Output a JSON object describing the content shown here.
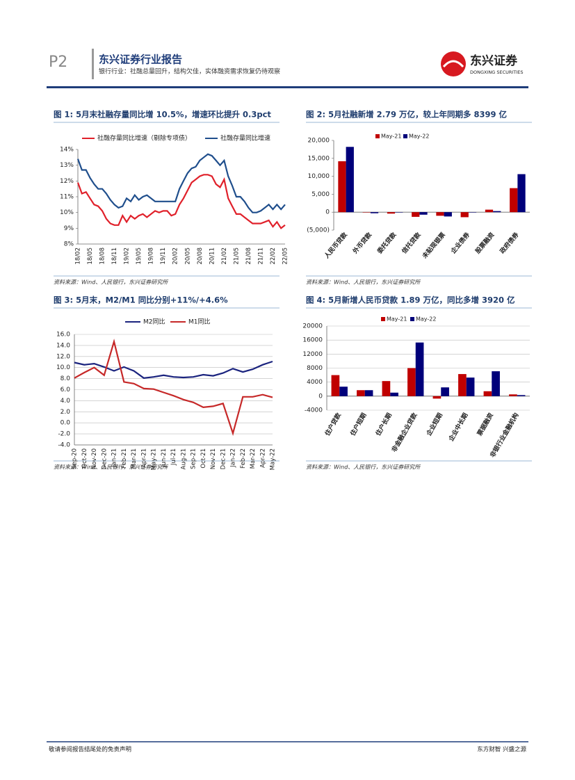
{
  "header": {
    "page": "P2",
    "title": "东兴证券行业报告",
    "subtitle": "银行行业：社融总量回升，结构欠佳，实体融资需求恢复仍待观察",
    "logo": "东兴证券",
    "logo_en": "DONGXING SECURITIES"
  },
  "footer": {
    "left": "敬请参阅报告结尾处的免责声明",
    "right": "东方财智 兴盛之源"
  },
  "chart_data": [
    {
      "type": "line",
      "title": "图 1: 5月末社融存量同比增 10.5%，增速环比提升 0.3pct",
      "source": "资料来源：Wind、人民银行，东兴证券研究所",
      "grid": false,
      "categories": [
        "18/02",
        null,
        null,
        "18/05",
        null,
        null,
        "18/08",
        null,
        null,
        "18/11",
        null,
        null,
        "19/02",
        null,
        null,
        "19/05",
        null,
        null,
        "19/08",
        null,
        null,
        "19/11",
        null,
        null,
        "20/02",
        null,
        null,
        "20/05",
        null,
        null,
        "20/08",
        null,
        null,
        "20/11",
        null,
        null,
        "21/02",
        null,
        null,
        "21/05",
        null,
        null,
        "21/08",
        null,
        null,
        "21/11",
        null,
        null,
        "22/02",
        null,
        null,
        "22/05"
      ],
      "ylim": [
        8,
        14
      ],
      "yticks": [
        {
          "value": 8,
          "label": "8%"
        },
        {
          "value": 9,
          "label": "9%"
        },
        {
          "value": 10,
          "label": "10%"
        },
        {
          "value": 11,
          "label": "11%"
        },
        {
          "value": 12,
          "label": "12%"
        },
        {
          "value": 13,
          "label": "13%"
        },
        {
          "value": 14,
          "label": "14%"
        }
      ],
      "series": [
        {
          "name": "社融存量同比增速（剔除专项债）",
          "color": "#e0202a",
          "values": [
            11.9,
            11.2,
            11.3,
            10.9,
            10.5,
            10.4,
            10.1,
            9.6,
            9.3,
            9.2,
            9.2,
            9.8,
            9.4,
            9.8,
            9.6,
            9.8,
            9.9,
            9.7,
            9.9,
            10.1,
            10.0,
            10.1,
            10.1,
            9.8,
            9.9,
            10.5,
            10.9,
            11.4,
            11.9,
            12.1,
            12.3,
            12.4,
            12.4,
            12.3,
            11.8,
            11.6,
            12.1,
            10.9,
            10.4,
            9.9,
            9.9,
            9.7,
            9.5,
            9.3,
            9.3,
            9.3,
            9.4,
            9.5,
            9.1,
            9.4,
            9.0,
            9.2
          ]
        },
        {
          "name": "社融存量同比增速",
          "color": "#1f4e8c",
          "values": [
            13.4,
            12.7,
            12.7,
            12.2,
            11.8,
            11.5,
            11.5,
            11.2,
            10.8,
            10.5,
            10.3,
            10.4,
            10.9,
            10.7,
            11.1,
            10.8,
            11.0,
            11.1,
            10.9,
            10.7,
            10.7,
            10.7,
            10.7,
            10.7,
            10.7,
            11.5,
            12.0,
            12.5,
            12.8,
            12.9,
            13.3,
            13.5,
            13.7,
            13.6,
            13.3,
            13.0,
            13.3,
            12.3,
            11.7,
            11.0,
            11.0,
            10.7,
            10.3,
            10.0,
            10.0,
            10.1,
            10.3,
            10.5,
            10.2,
            10.5,
            10.2,
            10.5
          ]
        }
      ]
    },
    {
      "type": "bar",
      "title": "图 2: 5月社融新增 2.79 万亿，较上年同期多 8399 亿",
      "source": "资料来源：Wind、人民银行，东兴证券研究所",
      "grid": false,
      "categories": [
        "人民币贷款",
        "外币贷款",
        "委托贷款",
        "信托贷款",
        "未贴现银票",
        "企业债券",
        "股票融资",
        "政府债券"
      ],
      "ylim": [
        -5000,
        20000
      ],
      "yticks": [
        {
          "value": -5000,
          "label": "(5,000)"
        },
        0,
        {
          "value": 5000,
          "label": "5,000"
        },
        {
          "value": 10000,
          "label": "10,000"
        },
        {
          "value": 15000,
          "label": "15,000"
        },
        {
          "value": 20000,
          "label": "20,000"
        }
      ],
      "series": [
        {
          "name": "May-21",
          "color": "#c00000",
          "values": [
            14200,
            -100,
            -400,
            -1300,
            -1000,
            -1400,
            700,
            6700
          ]
        },
        {
          "name": "May-22",
          "color": "#00007a",
          "values": [
            18200,
            -300,
            -100,
            -700,
            -1200,
            -100,
            300,
            10600
          ]
        }
      ]
    },
    {
      "type": "line",
      "title": "图 3: 5月末，M2/M1 同比分别+11%/+4.6%",
      "source": "资料来源：Wind、人民银行，东兴证券研究所",
      "grid": true,
      "categories": [
        "Sep-20",
        "Oct-20",
        "Nov-20",
        "Dec-20",
        "Jan-21",
        "Feb-21",
        "Mar-21",
        "Apr-21",
        "May-21",
        "Jun-21",
        "Jul-21",
        "Aug-21",
        "Sep-21",
        "Oct-21",
        "Nov-21",
        "Dec-21",
        "Jan-22",
        "Feb-22",
        "Mar-22",
        "Apr-22",
        "May-22"
      ],
      "ylim": [
        -4,
        16
      ],
      "yticks": [
        {
          "value": -4,
          "label": "-4.0"
        },
        {
          "value": -2,
          "label": "-2.0"
        },
        {
          "value": 0,
          "label": "0.0"
        },
        {
          "value": 2,
          "label": "2.0"
        },
        {
          "value": 4,
          "label": "4.0"
        },
        {
          "value": 6,
          "label": "6.0"
        },
        {
          "value": 8,
          "label": "8.0"
        },
        {
          "value": 10,
          "label": "10.0"
        },
        {
          "value": 12,
          "label": "12.0"
        },
        {
          "value": 14,
          "label": "14.0"
        },
        {
          "value": 16,
          "label": "16.0"
        }
      ],
      "series": [
        {
          "name": "M2同比",
          "color": "#1a237e",
          "values": [
            10.9,
            10.5,
            10.7,
            10.1,
            9.4,
            10.1,
            9.4,
            8.1,
            8.3,
            8.6,
            8.3,
            8.2,
            8.3,
            8.7,
            8.5,
            9.0,
            9.8,
            9.2,
            9.7,
            10.5,
            11.1
          ]
        },
        {
          "name": "M1同比",
          "color": "#c62828",
          "values": [
            8.1,
            9.1,
            10.0,
            8.6,
            14.7,
            7.4,
            7.1,
            6.2,
            6.1,
            5.5,
            4.9,
            4.2,
            3.7,
            2.8,
            3.0,
            3.5,
            -1.9,
            4.7,
            4.7,
            5.1,
            4.6
          ]
        }
      ]
    },
    {
      "type": "bar",
      "title": "图 4: 5月新增人民币贷款 1.89 万亿，同比多增 3920 亿",
      "source": "资料来源：Wind、人民银行，东兴证券研究所",
      "grid": true,
      "categories": [
        "住户贷款",
        "住户短期",
        "住户长期",
        "非金融企业贷款",
        "企业短期",
        "企业中长期",
        "票据融资",
        "非银行业金融机构"
      ],
      "ylim": [
        -4000,
        20000
      ],
      "yticks": [
        -4000,
        0,
        4000,
        8000,
        12000,
        16000,
        20000
      ],
      "series": [
        {
          "name": "May-21",
          "color": "#c00000",
          "values": [
            6000,
            1700,
            4300,
            8000,
            -700,
            6300,
            1400,
            500
          ]
        },
        {
          "name": "May-22",
          "color": "#00007a",
          "values": [
            2700,
            1700,
            1000,
            15300,
            2500,
            5300,
            7100,
            300
          ]
        }
      ]
    }
  ]
}
